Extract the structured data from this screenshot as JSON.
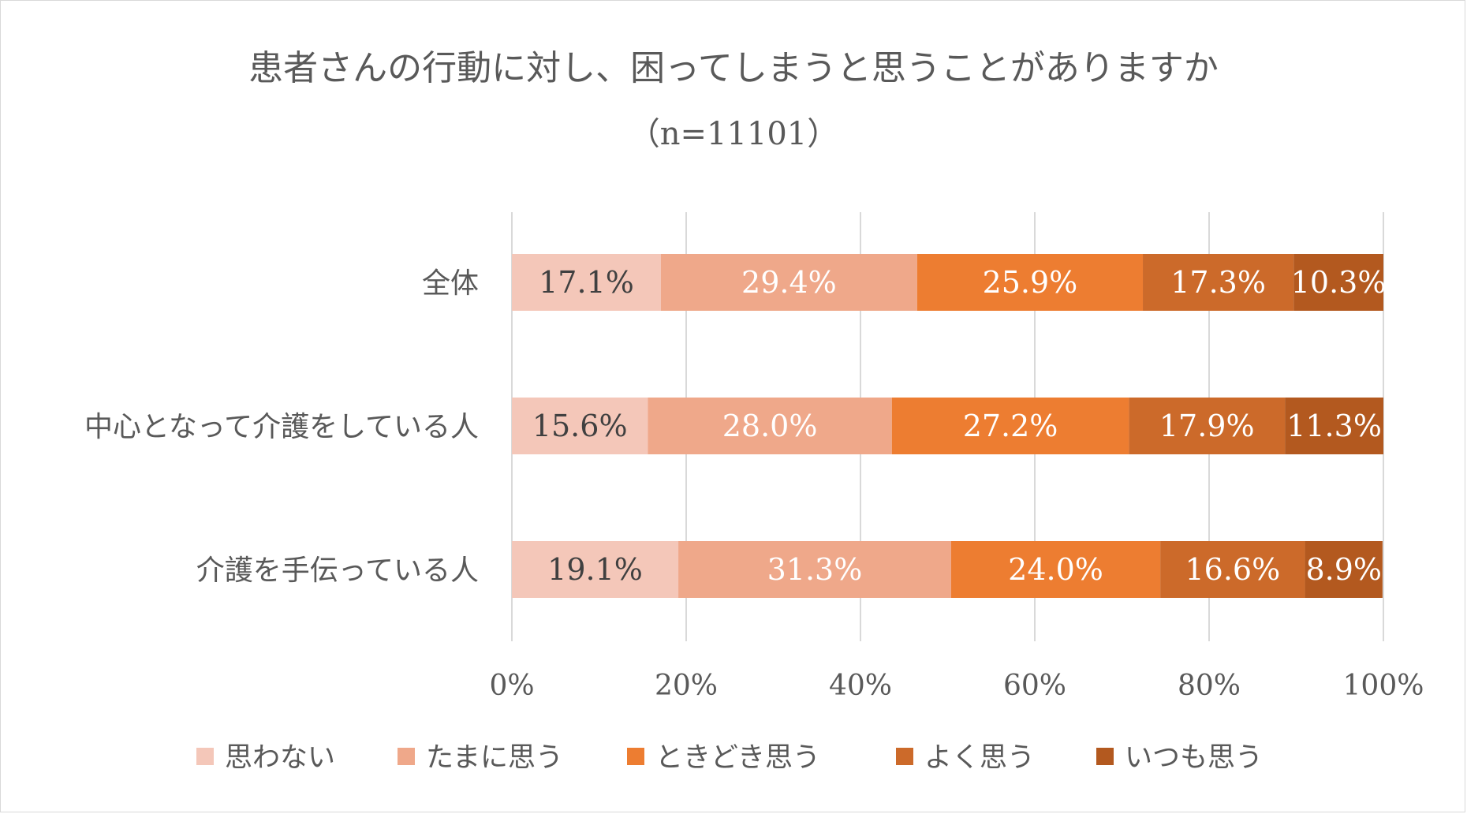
{
  "chart_data": {
    "type": "bar",
    "orientation": "horizontal",
    "stacked": "percent",
    "title": "患者さんの行動に対し、困ってしまうと思うことがありますか",
    "subtitle": "（n=11101）",
    "categories": [
      "全体",
      "中心となって介護をしている人",
      "介護を手伝っている人"
    ],
    "series": [
      {
        "name": "思わない",
        "color": "#F4C7B9",
        "label_color": "#404040",
        "values": [
          17.1,
          15.6,
          19.1
        ],
        "labels": [
          "17.1%",
          "15.6%",
          "19.1%"
        ]
      },
      {
        "name": "たまに思う",
        "color": "#EFA88A",
        "label_color": "#ffffff",
        "values": [
          29.4,
          28.0,
          31.3
        ],
        "labels": [
          "29.4%",
          "28.0%",
          "31.3%"
        ]
      },
      {
        "name": "ときどき思う",
        "color": "#ED7D31",
        "label_color": "#ffffff",
        "values": [
          25.9,
          27.2,
          24.0
        ],
        "labels": [
          "25.9%",
          "27.2%",
          "24.0%"
        ]
      },
      {
        "name": "よく思う",
        "color": "#CC6A2A",
        "label_color": "#ffffff",
        "values": [
          17.3,
          17.9,
          16.6
        ],
        "labels": [
          "17.3%",
          "17.9%",
          "16.6%"
        ]
      },
      {
        "name": "いつも思う",
        "color": "#B3591F",
        "label_color": "#ffffff",
        "values": [
          10.3,
          11.3,
          8.9
        ],
        "labels": [
          "10.3%",
          "11.3%",
          "8.9%"
        ]
      }
    ],
    "xlim": [
      0,
      100
    ],
    "xticks": [
      0,
      20,
      40,
      60,
      80,
      100
    ],
    "xtick_labels": [
      "0%",
      "20%",
      "40%",
      "60%",
      "80%",
      "100%"
    ],
    "grid": true,
    "legend_position": "bottom"
  }
}
